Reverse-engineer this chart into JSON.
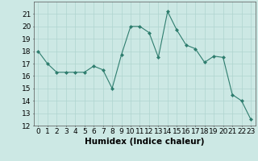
{
  "x": [
    0,
    1,
    2,
    3,
    4,
    5,
    6,
    7,
    8,
    9,
    10,
    11,
    12,
    13,
    14,
    15,
    16,
    17,
    18,
    19,
    20,
    21,
    22,
    23
  ],
  "y": [
    18,
    17,
    16.3,
    16.3,
    16.3,
    16.3,
    16.8,
    16.5,
    15.0,
    17.7,
    20.0,
    20.0,
    19.5,
    17.5,
    21.2,
    19.7,
    18.5,
    18.2,
    17.1,
    17.6,
    17.5,
    14.5,
    14.0,
    12.5
  ],
  "xlabel": "Humidex (Indice chaleur)",
  "ylim": [
    12,
    22
  ],
  "xlim": [
    -0.5,
    23.5
  ],
  "yticks": [
    12,
    13,
    14,
    15,
    16,
    17,
    18,
    19,
    20,
    21
  ],
  "xticks": [
    0,
    1,
    2,
    3,
    4,
    5,
    6,
    7,
    8,
    9,
    10,
    11,
    12,
    13,
    14,
    15,
    16,
    17,
    18,
    19,
    20,
    21,
    22,
    23
  ],
  "line_color": "#2e7d6e",
  "marker": "D",
  "marker_size": 2,
  "bg_color": "#cce8e4",
  "grid_color": "#afd4cf",
  "tick_label_fontsize": 6.5,
  "xlabel_fontsize": 7.5
}
